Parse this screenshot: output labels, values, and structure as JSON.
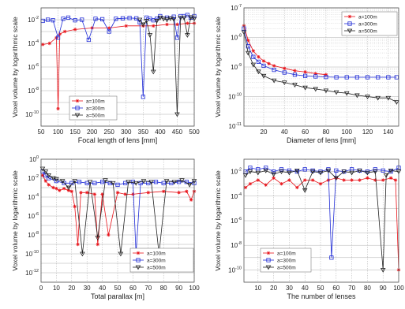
{
  "colors": {
    "a100": "#e8131a",
    "a300": "#1f2bd6",
    "a500": "#222222",
    "grid": "#9a9a9a"
  },
  "chart_data": [
    {
      "type": "line",
      "yscale": "log",
      "xlabel": "Focal length of lens [mm]",
      "ylabel": "Voxel volume by logarithmic scale",
      "xlim": [
        50,
        500
      ],
      "ylim": [
        1e-11,
        0.1
      ],
      "xticks": [
        "50",
        "100",
        "150",
        "200",
        "250",
        "300",
        "350",
        "400",
        "450",
        "500"
      ],
      "yticks": [
        "10^-10",
        "10^-8",
        "10^-6",
        "10^-4",
        "10^-2"
      ],
      "grid": true,
      "legend": {
        "position": "lower-left",
        "entries": [
          "a=100m",
          "a=300m",
          "a=500m"
        ]
      },
      "series": [
        {
          "name": "a=100m",
          "color": "#e8131a",
          "marker": "star",
          "x": [
            55,
            75,
            95,
            100,
            105,
            120,
            150,
            200,
            250,
            300,
            350,
            380,
            420,
            450,
            480,
            500
          ],
          "y": [
            8e-05,
            0.0001,
            0.0003,
            3e-10,
            0.0006,
            0.001,
            0.0015,
            0.002,
            0.002,
            0.003,
            0.003,
            0.003,
            0.004,
            0.004,
            0.005,
            0.005
          ]
        },
        {
          "name": "a=300m",
          "color": "#1f2bd6",
          "marker": "square",
          "x": [
            55,
            70,
            85,
            100,
            115,
            130,
            150,
            170,
            190,
            210,
            230,
            250,
            270,
            290,
            310,
            330,
            340,
            350,
            360,
            370,
            380,
            390,
            400,
            420,
            440,
            450,
            460,
            470,
            480,
            490,
            500
          ],
          "y": [
            0.008,
            0.01,
            0.009,
            0.0003,
            0.012,
            0.015,
            0.009,
            0.01,
            0.0002,
            0.012,
            0.011,
            0.001,
            0.012,
            0.013,
            0.014,
            0.013,
            0.006,
            3e-09,
            0.015,
            0.012,
            0.009,
            0.012,
            0.02,
            0.015,
            0.018,
            0.0003,
            0.02,
            0.02,
            0.025,
            0.015,
            0.02
          ]
        },
        {
          "name": "a=500m",
          "color": "#222222",
          "marker": "triangle-down",
          "x": [
            340,
            350,
            360,
            370,
            380,
            390,
            400,
            410,
            420,
            430,
            440,
            450,
            460,
            470,
            480,
            490,
            500
          ],
          "y": [
            0.01,
            0.004,
            0.008,
            0.0005,
            4e-07,
            0.008,
            0.015,
            0.012,
            0.01,
            0.013,
            0.011,
            1e-10,
            0.015,
            0.015,
            0.0005,
            0.016,
            0.012
          ]
        }
      ]
    },
    {
      "type": "line",
      "yscale": "log",
      "xlabel": "Diameter of lens [mm]",
      "ylabel": "Voxel volume by logarithmic scale",
      "xlim": [
        1,
        150
      ],
      "ylim": [
        1e-11,
        1e-07
      ],
      "xticks": [
        "20",
        "40",
        "60",
        "80",
        "100",
        "120",
        "140"
      ],
      "yticks": [
        "10^-11",
        "10^-10",
        "10^-9",
        "10^-8",
        "10^-7"
      ],
      "grid": true,
      "legend": {
        "position": "top-right",
        "entries": [
          "a=100m",
          "a=300m",
          "a=500m"
        ]
      },
      "series": [
        {
          "name": "a=100m",
          "color": "#e8131a",
          "marker": "star",
          "x": [
            1,
            5,
            10,
            15,
            20,
            25,
            30,
            40,
            50,
            60,
            70,
            80
          ],
          "y": [
            2.5e-08,
            8e-09,
            3.5e-09,
            2.2e-09,
            1.6e-09,
            1.3e-09,
            1.1e-09,
            9e-10,
            7.5e-10,
            6.8e-10,
            6e-10,
            5.5e-10
          ]
        },
        {
          "name": "a=300m",
          "color": "#1f2bd6",
          "marker": "square",
          "x": [
            1,
            5,
            10,
            15,
            20,
            30,
            40,
            50,
            60,
            70,
            80,
            90,
            100,
            110,
            120,
            130,
            140,
            148
          ],
          "y": [
            2e-08,
            5e-09,
            2.2e-09,
            1.5e-09,
            1.1e-09,
            8e-10,
            6.5e-10,
            5.5e-10,
            5e-10,
            4.8e-10,
            4.6e-10,
            4.5e-10,
            4.5e-10,
            4.5e-10,
            4.5e-10,
            4.5e-10,
            4.5e-10,
            4.5e-10
          ]
        },
        {
          "name": "a=500m",
          "color": "#222222",
          "marker": "triangle-down",
          "x": [
            1,
            5,
            10,
            15,
            20,
            30,
            40,
            50,
            60,
            70,
            80,
            90,
            100,
            110,
            120,
            130,
            140,
            148
          ],
          "y": [
            1.5e-08,
            3e-09,
            1.2e-09,
            7e-10,
            5e-10,
            3.5e-10,
            3e-10,
            2.5e-10,
            2e-10,
            1.8e-10,
            1.6e-10,
            1.4e-10,
            1.3e-10,
            1.1e-10,
            1e-10,
            9e-11,
            9e-11,
            6.5e-11
          ]
        }
      ]
    },
    {
      "type": "line",
      "yscale": "log",
      "xlabel": "Total parallax [m]",
      "ylabel": "Voxel volume by logarithmic scale",
      "xlim": [
        0,
        100
      ],
      "ylim": [
        1e-13,
        1
      ],
      "xticks": [
        "0",
        "10",
        "20",
        "30",
        "40",
        "50",
        "60",
        "70",
        "80",
        "90",
        "100"
      ],
      "yticks": [
        "10^-12",
        "10^-10",
        "10^-8",
        "10^-6",
        "10^-4",
        "10^-2",
        "10^0"
      ],
      "grid": true,
      "legend": {
        "position": "lower-right",
        "entries": [
          "a=100m",
          "a=300m",
          "a=500m"
        ]
      },
      "series": [
        {
          "name": "a=100m",
          "color": "#e8131a",
          "marker": "star",
          "x": [
            1,
            3,
            5,
            8,
            10,
            12,
            15,
            18,
            20,
            22,
            24,
            26,
            30,
            35,
            37,
            40,
            44,
            50,
            55,
            60,
            70,
            80,
            90,
            95,
            98,
            100
          ],
          "y": [
            0.02,
            0.005,
            0.002,
            0.001,
            0.0008,
            0.0005,
            0.0008,
            0.0005,
            0.0004,
            1e-05,
            1e-09,
            0.0003,
            0.0003,
            0.0002,
            1e-09,
            0.0002,
            1e-08,
            0.0003,
            0.0002,
            0.0002,
            0.0003,
            0.0004,
            0.0003,
            0.0004,
            5e-05,
            0.0004
          ]
        },
        {
          "name": "a=300m",
          "color": "#1f2bd6",
          "marker": "square",
          "x": [
            1,
            3,
            5,
            10,
            15,
            20,
            25,
            30,
            35,
            40,
            45,
            50,
            55,
            60,
            62,
            65,
            70,
            75,
            80,
            85,
            90,
            95,
            100
          ],
          "y": [
            0.05,
            0.02,
            0.01,
            0.005,
            0.003,
            0.003,
            0.004,
            0.003,
            0.003,
            0.004,
            0.003,
            0.002,
            0.003,
            0.004,
            1e-10,
            0.003,
            0.003,
            0.004,
            0.003,
            0.003,
            0.004,
            0.004,
            0.003
          ]
        },
        {
          "name": "a=500m",
          "color": "#222222",
          "marker": "triangle-down",
          "x": [
            1,
            3,
            5,
            8,
            10,
            14,
            18,
            22,
            27,
            32,
            37,
            42,
            47,
            52,
            57,
            62,
            67,
            72,
            77,
            82,
            87,
            92,
            97,
            100
          ],
          "y": [
            0.1,
            0.05,
            0.02,
            0.01,
            0.008,
            0.005,
            0.001,
            0.005,
            1e-10,
            0.004,
            5e-09,
            0.006,
            0.003,
            1e-10,
            0.004,
            0.003,
            0.005,
            0.004,
            1e-10,
            0.005,
            0.004,
            0.006,
            0.002,
            0.005
          ]
        }
      ]
    },
    {
      "type": "line",
      "yscale": "log",
      "xlabel": "The number of lenses",
      "ylabel": "Voxel volume by logarithmic scale",
      "xlim": [
        1,
        100
      ],
      "ylim": [
        1e-11,
        0.1
      ],
      "xticks": [
        "10",
        "20",
        "30",
        "40",
        "50",
        "60",
        "70",
        "80",
        "90",
        "100"
      ],
      "yticks": [
        "10^-10",
        "10^-8",
        "10^-6",
        "10^-4",
        "10^-2"
      ],
      "grid": true,
      "legend": {
        "position": "lower-left",
        "entries": [
          "a=100m",
          "a=300m",
          "a=500m"
        ]
      },
      "series": [
        {
          "name": "a=100m",
          "color": "#e8131a",
          "marker": "star",
          "x": [
            2,
            5,
            10,
            15,
            20,
            25,
            30,
            35,
            40,
            45,
            50,
            55,
            60,
            65,
            70,
            75,
            80,
            85,
            90,
            95,
            98,
            100
          ],
          "y": [
            0.0005,
            0.001,
            0.002,
            0.0008,
            0.003,
            0.001,
            0.002,
            0.0005,
            0.002,
            0.002,
            0.001,
            0.002,
            0.003,
            0.002,
            0.002,
            0.002,
            0.003,
            0.002,
            0.002,
            0.003,
            0.002,
            1e-10
          ]
        },
        {
          "name": "a=300m",
          "color": "#1f2bd6",
          "marker": "square",
          "x": [
            2,
            5,
            10,
            15,
            20,
            25,
            30,
            35,
            40,
            45,
            50,
            55,
            57,
            60,
            65,
            70,
            75,
            80,
            85,
            90,
            95,
            100
          ],
          "y": [
            0.01,
            0.02,
            0.015,
            0.02,
            0.01,
            0.015,
            0.012,
            0.01,
            0.015,
            0.012,
            0.01,
            0.015,
            1e-09,
            0.012,
            0.01,
            0.015,
            0.012,
            0.01,
            0.015,
            0.012,
            0.01,
            0.02
          ]
        },
        {
          "name": "a=500m",
          "color": "#222222",
          "marker": "triangle-down",
          "x": [
            2,
            5,
            10,
            15,
            20,
            25,
            30,
            35,
            40,
            45,
            50,
            55,
            60,
            65,
            70,
            75,
            80,
            85,
            90,
            92,
            95,
            100
          ],
          "y": [
            0.005,
            0.01,
            0.008,
            0.012,
            0.006,
            0.01,
            0.008,
            0.012,
            0.0003,
            0.01,
            0.008,
            0.012,
            0.003,
            0.01,
            0.008,
            0.012,
            0.008,
            0.01,
            1e-10,
            0.005,
            0.012,
            0.01
          ]
        }
      ]
    }
  ]
}
